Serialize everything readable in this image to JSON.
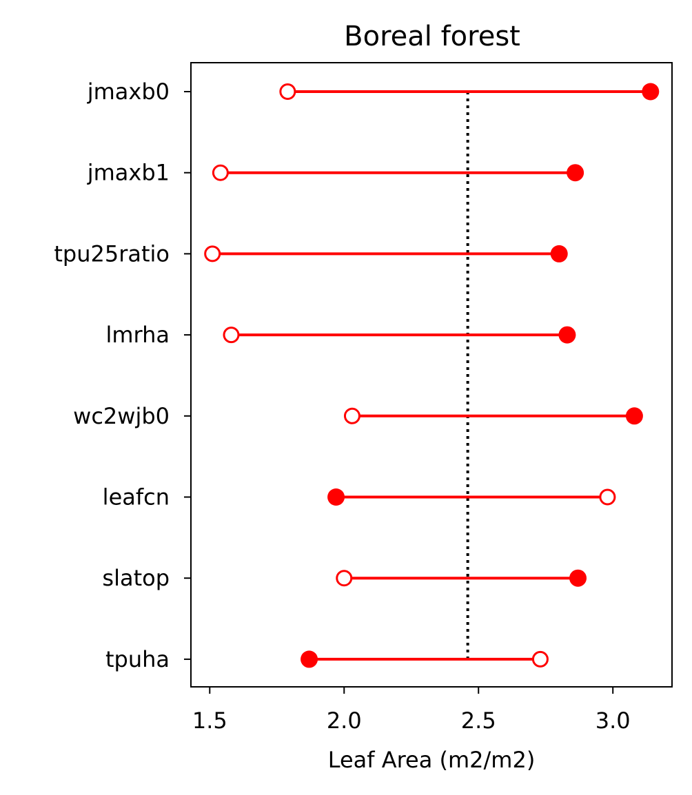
{
  "chart_data": {
    "type": "dumbbell",
    "title": "Boreal forest",
    "xlabel": "Leaf Area (m2/m2)",
    "ylabel": "",
    "xlim": [
      1.43,
      3.22
    ],
    "xticks": [
      1.5,
      2.0,
      2.5,
      3.0
    ],
    "xtick_labels": [
      "1.5",
      "2.0",
      "2.5",
      "3.0"
    ],
    "reference_line": {
      "x": 2.46,
      "style": "dotted",
      "color": "#000000"
    },
    "color": "#ff0000",
    "grid": false,
    "legend": "none",
    "categories": [
      "jmaxb0",
      "jmaxb1",
      "tpu25ratio",
      "lmrha",
      "wc2wjb0",
      "leafcn",
      "slatop",
      "tpuha"
    ],
    "points": [
      {
        "parameter": "jmaxb0",
        "open": 1.79,
        "filled": 3.14
      },
      {
        "parameter": "jmaxb1",
        "open": 1.54,
        "filled": 2.86
      },
      {
        "parameter": "tpu25ratio",
        "open": 1.51,
        "filled": 2.8
      },
      {
        "parameter": "lmrha",
        "open": 1.58,
        "filled": 2.83
      },
      {
        "parameter": "wc2wjb0",
        "open": 2.03,
        "filled": 3.08
      },
      {
        "parameter": "leafcn",
        "open": 2.98,
        "filled": 1.97
      },
      {
        "parameter": "slatop",
        "open": 2.0,
        "filled": 2.87
      },
      {
        "parameter": "tpuha",
        "open": 2.73,
        "filled": 1.87
      }
    ]
  }
}
